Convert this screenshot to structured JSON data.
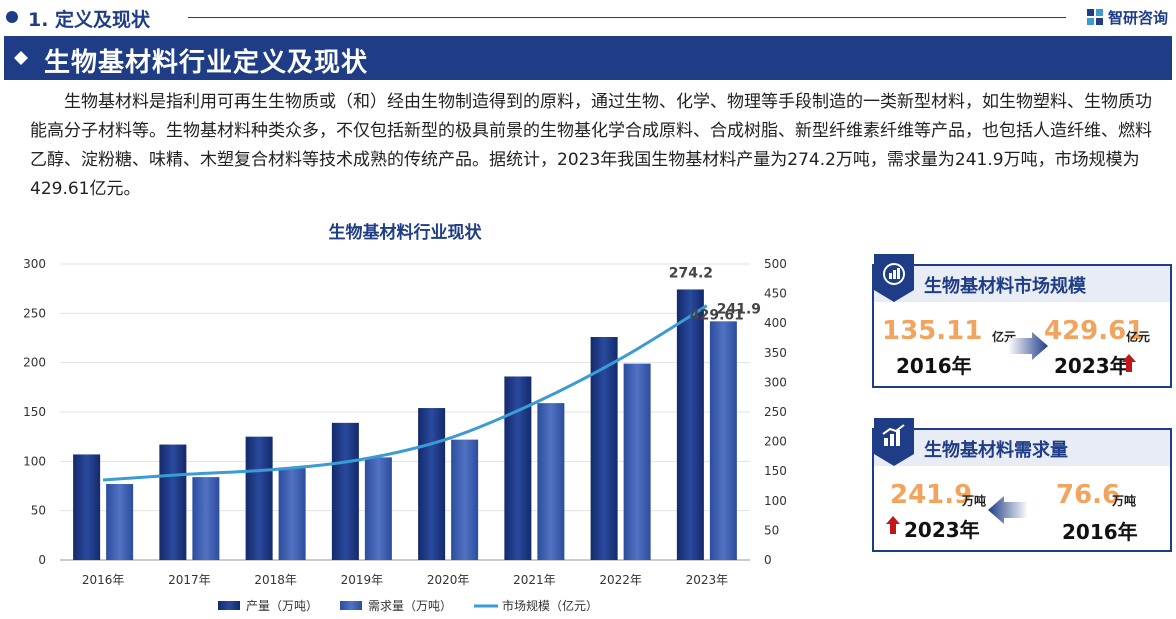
{
  "header": {
    "section_label": "1. 定义及现状",
    "logo_text": "智研咨询",
    "title": "生物基材料行业定义及现状"
  },
  "intro": "生物基材料是指利用可再生生物质或（和）经由生物制造得到的原料，通过生物、化学、物理等手段制造的一类新型材料，如生物塑料、生物质功能高分子材料等。生物基材料种类众多，不仅包括新型的极具前景的生物基化学合成原料、合成树脂、新型纤维素纤维等产品，也包括人造纤维、燃料乙醇、淀粉糖、味精、木塑复合材料等技术成熟的传统产品。据统计，2023年我国生物基材料产量为274.2万吨，需求量为241.9万吨，市场规模为429.61亿元。",
  "chart_data": {
    "type": "bar",
    "title": "生物基材料行业现状",
    "categories": [
      "2016年",
      "2017年",
      "2018年",
      "2019年",
      "2020年",
      "2021年",
      "2022年",
      "2023年"
    ],
    "series": [
      {
        "name": "产量（万吨）",
        "type": "bar",
        "axis": "left",
        "color": "#1f3d87",
        "values": [
          107,
          117,
          125,
          139,
          154,
          186,
          226,
          274.2
        ]
      },
      {
        "name": "需求量（万吨）",
        "type": "bar",
        "axis": "left",
        "color": "#3d5fb3",
        "values": [
          77,
          84,
          93,
          104,
          122,
          159,
          199,
          241.9
        ]
      },
      {
        "name": "市场规模（亿元）",
        "type": "line",
        "axis": "right",
        "color": "#3a9bd5",
        "values": [
          135.11,
          145,
          153,
          170,
          205,
          265,
          340,
          429.61
        ]
      }
    ],
    "left_axis": {
      "min": 0,
      "max": 300,
      "ticks": [
        0,
        50,
        100,
        150,
        200,
        250,
        300
      ]
    },
    "right_axis": {
      "min": 0,
      "max": 500,
      "ticks": [
        0,
        50,
        100,
        150,
        200,
        250,
        300,
        350,
        400,
        450,
        500
      ]
    },
    "grid": true,
    "legend": "bottom",
    "data_labels": {
      "production_2023": "274.2",
      "demand_2023": "241.9",
      "market_2023": "429.61"
    }
  },
  "market_card": {
    "title": "生物基材料市场规模",
    "from_value": "135.11",
    "from_unit": "亿元",
    "from_year": "2016年",
    "to_value": "429.61",
    "to_unit": "亿元",
    "to_year": "2023年"
  },
  "demand_card": {
    "title": "生物基材料需求量",
    "left_value": "241.9",
    "left_unit": "万吨",
    "left_year": "2023年",
    "right_value": "76.6",
    "right_unit": "万吨",
    "right_year": "2016年"
  },
  "colors": {
    "brand": "#1f3d87",
    "accent": "#f2a35e",
    "up_arrow": "#c0161c",
    "line": "#3a9bd5"
  }
}
